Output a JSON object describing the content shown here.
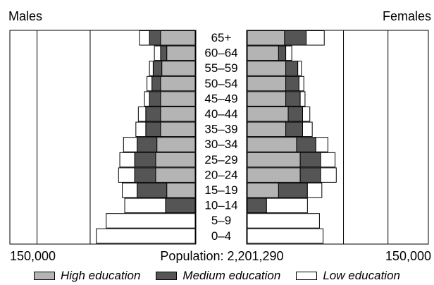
{
  "chart_data": {
    "type": "bar",
    "subtype": "population-pyramid",
    "left_title": "Males",
    "right_title": "Females",
    "left_tick_label": "150,000",
    "right_tick_label": "150,000",
    "center_label": "Population: 2,201,290",
    "xlim": [
      0,
      150000
    ],
    "categories": [
      "65+",
      "60–64",
      "55–59",
      "50–54",
      "45–49",
      "40–44",
      "35–39",
      "30–34",
      "25–29",
      "20–24",
      "15–19",
      "10–14",
      "5–9",
      "0–4"
    ],
    "series": [
      {
        "name": "High education",
        "color": "#b4b4b4",
        "males": [
          28000,
          23000,
          27000,
          28000,
          28000,
          28000,
          28000,
          31000,
          32000,
          32000,
          23000,
          0,
          0,
          0
        ],
        "females": [
          31000,
          26000,
          32000,
          32000,
          32000,
          34000,
          32000,
          41000,
          44000,
          44000,
          26000,
          0,
          0,
          0
        ]
      },
      {
        "name": "Medium education",
        "color": "#555555",
        "males": [
          9000,
          5000,
          7000,
          7000,
          9000,
          12000,
          12000,
          16000,
          17000,
          17000,
          24000,
          24000,
          0,
          0
        ],
        "females": [
          18000,
          6000,
          10000,
          11000,
          12000,
          12000,
          14000,
          16000,
          17000,
          17000,
          24000,
          16000,
          0,
          0
        ]
      },
      {
        "name": "Low education",
        "color": "#ffffff",
        "males": [
          8000,
          5000,
          3000,
          4000,
          4000,
          6000,
          8000,
          11000,
          12000,
          13000,
          12000,
          33000,
          72000,
          80000
        ],
        "females": [
          15000,
          5000,
          3000,
          4000,
          4000,
          6000,
          8000,
          10000,
          12000,
          13000,
          12000,
          34000,
          60000,
          63000
        ]
      }
    ],
    "background_series": [
      {
        "name": "outer outline",
        "males": 128000,
        "females": 117000
      },
      {
        "name": "inner outline",
        "males": 85000,
        "females": 80000
      }
    ]
  }
}
